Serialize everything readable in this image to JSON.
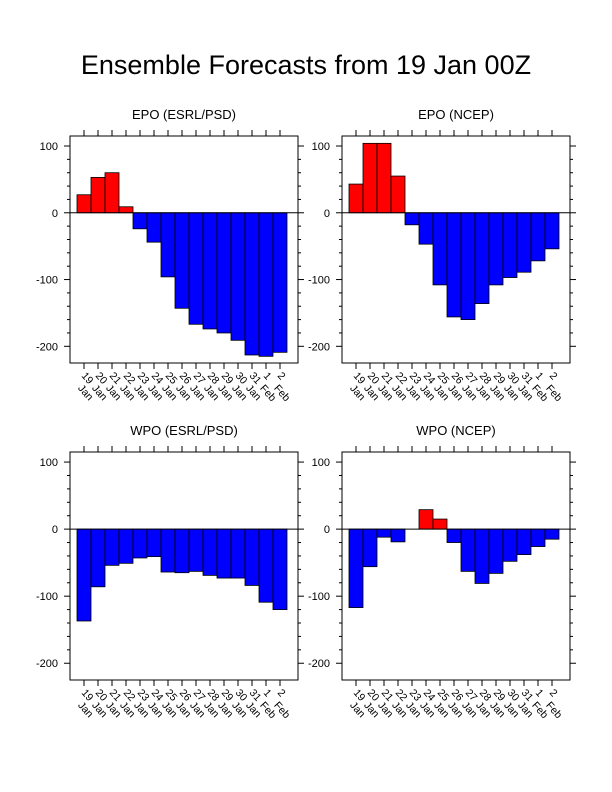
{
  "title": "Ensemble Forecasts from 19 Jan 00Z",
  "colors": {
    "positive": "#ff0000",
    "negative": "#0000ff",
    "axis": "#000000",
    "background": "#ffffff"
  },
  "chart_data": [
    {
      "type": "bar",
      "title": "EPO (ESRL/PSD)",
      "categories": [
        "19 Jan",
        "20 Jan",
        "21 Jan",
        "22 Jan",
        "23 Jan",
        "24 Jan",
        "25 Jan",
        "26 Jan",
        "27 Jan",
        "28 Jan",
        "29 Jan",
        "30 Jan",
        "31 Jan",
        "1 Feb",
        "2 Feb"
      ],
      "values": [
        27,
        53,
        60,
        9,
        -24,
        -44,
        -96,
        -143,
        -167,
        -174,
        -180,
        -191,
        -213,
        -215,
        -209
      ],
      "ylim": [
        -225,
        115
      ],
      "yticks": [
        100,
        0,
        -100,
        -200
      ],
      "ytick_labels": [
        "100",
        "0",
        "-100",
        "-200"
      ],
      "grid": false
    },
    {
      "type": "bar",
      "title": "EPO (NCEP)",
      "categories": [
        "19 Jan",
        "20 Jan",
        "21 Jan",
        "22 Jan",
        "23 Jan",
        "24 Jan",
        "25 Jan",
        "26 Jan",
        "27 Jan",
        "28 Jan",
        "29 Jan",
        "30 Jan",
        "31 Jan",
        "1 Feb",
        "2 Feb"
      ],
      "values": [
        43,
        104,
        104,
        55,
        -18,
        -47,
        -108,
        -156,
        -160,
        -136,
        -108,
        -97,
        -89,
        -72,
        -54
      ],
      "ylim": [
        -225,
        115
      ],
      "yticks": [
        100,
        0,
        -100,
        -200
      ],
      "ytick_labels": [
        "100",
        "0",
        "-100",
        "-200"
      ],
      "grid": false
    },
    {
      "type": "bar",
      "title": "WPO (ESRL/PSD)",
      "categories": [
        "19 Jan",
        "20 Jan",
        "21 Jan",
        "22 Jan",
        "23 Jan",
        "24 Jan",
        "25 Jan",
        "26 Jan",
        "27 Jan",
        "28 Jan",
        "29 Jan",
        "30 Jan",
        "31 Jan",
        "1 Feb",
        "2 Feb"
      ],
      "values": [
        -137,
        -86,
        -54,
        -51,
        -43,
        -41,
        -64,
        -65,
        -63,
        -69,
        -73,
        -73,
        -84,
        -109,
        -120
      ],
      "ylim": [
        -225,
        115
      ],
      "yticks": [
        100,
        0,
        -100,
        -200
      ],
      "ytick_labels": [
        "100",
        "0",
        "-100",
        "-200"
      ],
      "grid": false
    },
    {
      "type": "bar",
      "title": "WPO (NCEP)",
      "categories": [
        "19 Jan",
        "20 Jan",
        "21 Jan",
        "22 Jan",
        "23 Jan",
        "24 Jan",
        "25 Jan",
        "26 Jan",
        "27 Jan",
        "28 Jan",
        "29 Jan",
        "30 Jan",
        "31 Jan",
        "1 Feb",
        "2 Feb"
      ],
      "values": [
        -117,
        -56,
        -12,
        -19,
        0,
        29,
        15,
        -20,
        -63,
        -81,
        -66,
        -48,
        -38,
        -26,
        -15
      ],
      "ylim": [
        -225,
        115
      ],
      "yticks": [
        100,
        0,
        -100,
        -200
      ],
      "ytick_labels": [
        "100",
        "0",
        "-100",
        "-200"
      ],
      "grid": false
    }
  ]
}
